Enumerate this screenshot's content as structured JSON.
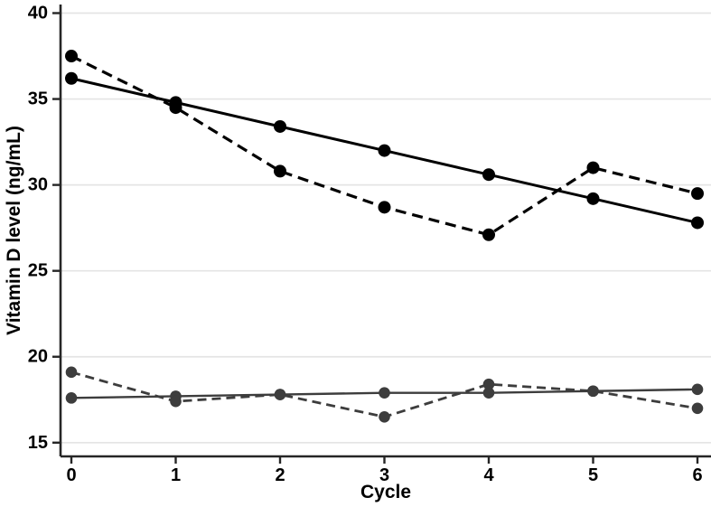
{
  "figure": {
    "background": "#ffffff"
  },
  "chart_data": {
    "type": "line",
    "title": "",
    "xlabel": "Cycle",
    "ylabel": "Vitamin D level (ng/mL)",
    "x": [
      0,
      1,
      2,
      3,
      4,
      5,
      6
    ],
    "xticks": [
      0,
      1,
      2,
      3,
      4,
      5,
      6
    ],
    "yticks": [
      15,
      20,
      25,
      30,
      35,
      40
    ],
    "ylim": [
      14.2,
      40.5
    ],
    "xlim": [
      -0.1,
      6.13
    ],
    "grid": "horizontal-only",
    "legend": "none",
    "axis_color": "#262626",
    "grid_color": "#e4e4e4",
    "series": [
      {
        "name": "black-solid-trend",
        "style": "solid",
        "color": "#000000",
        "marker": "circle",
        "marker_radius": 7,
        "width": 3,
        "values": [
          36.2,
          34.8,
          33.4,
          32.0,
          30.6,
          29.2,
          27.8
        ]
      },
      {
        "name": "black-dashed-observed",
        "style": "dashed",
        "dash": "12 7",
        "color": "#000000",
        "marker": "circle",
        "marker_radius": 7,
        "width": 3.2,
        "values": [
          37.5,
          34.5,
          30.8,
          28.7,
          27.1,
          31.0,
          29.5
        ]
      },
      {
        "name": "gray-solid-trend",
        "style": "solid",
        "color": "#3d3d3d",
        "marker": "circle",
        "marker_radius": 6.3,
        "width": 2.4,
        "values": [
          17.6,
          17.7,
          17.8,
          17.9,
          17.9,
          18.0,
          18.1
        ]
      },
      {
        "name": "gray-dashed-observed",
        "style": "dashed",
        "dash": "10 6",
        "color": "#3d3d3d",
        "marker": "circle",
        "marker_radius": 6.3,
        "width": 2.8,
        "values": [
          19.1,
          17.4,
          17.8,
          16.5,
          18.4,
          18.0,
          17.0
        ]
      }
    ]
  }
}
